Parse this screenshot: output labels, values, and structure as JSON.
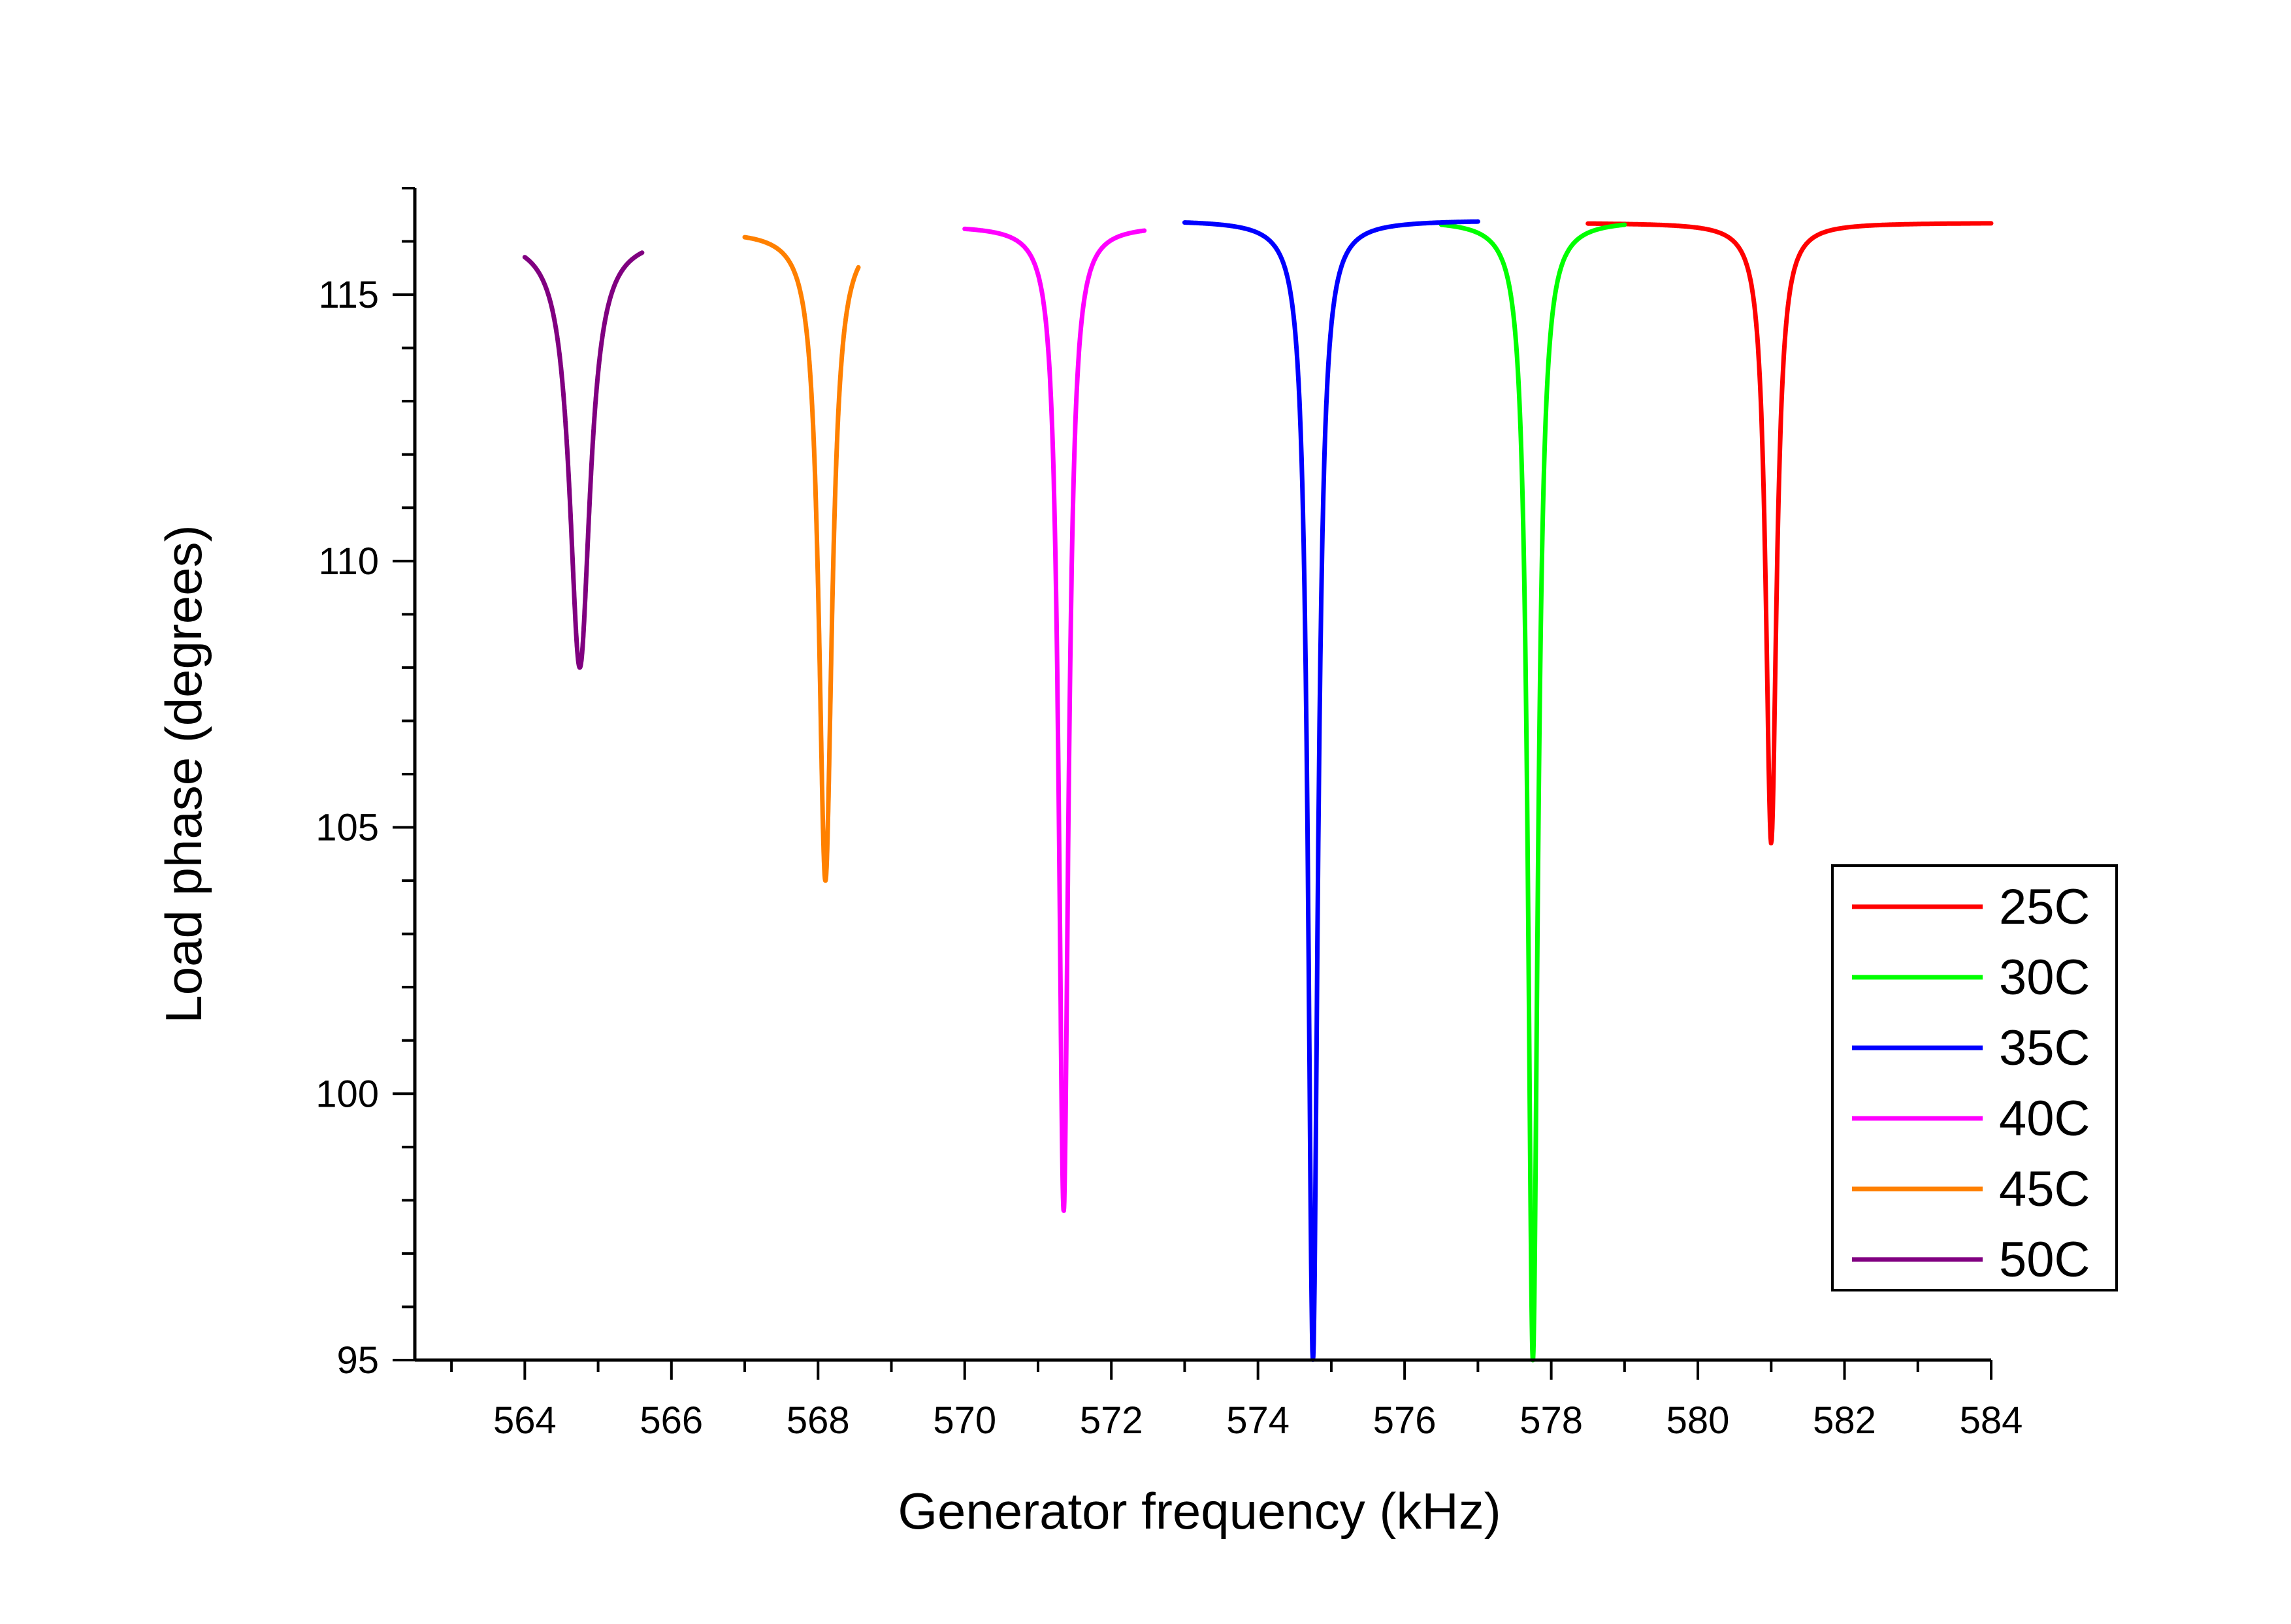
{
  "chart_data": {
    "type": "line",
    "title": "",
    "xlabel": "Generator frequency (kHz)",
    "ylabel": "Load phase (degrees)",
    "xlim": [
      562.5,
      584
    ],
    "ylim": [
      95,
      117
    ],
    "xticks": [
      564,
      566,
      568,
      570,
      572,
      574,
      576,
      578,
      580,
      582,
      584
    ],
    "yticks": [
      95,
      100,
      105,
      110,
      115
    ],
    "grid": false,
    "legend_position": "bottom-right",
    "series": [
      {
        "name": "25C",
        "color": "#ff0000",
        "x_range": [
          578.5,
          584
        ],
        "center": 581.0,
        "baseline": 116.35,
        "min": 104.7,
        "width": 0.09
      },
      {
        "name": "30C",
        "color": "#00ff00",
        "x_range": [
          576.5,
          579
        ],
        "center": 577.75,
        "baseline": 116.4,
        "min": 95.0,
        "width": 0.08
      },
      {
        "name": "35C",
        "color": "#0000ff",
        "x_range": [
          573,
          577
        ],
        "center": 574.75,
        "baseline": 116.4,
        "min": 95.0,
        "width": 0.08
      },
      {
        "name": "40C",
        "color": "#ff00ff",
        "x_range": [
          570,
          572.45
        ],
        "center": 571.35,
        "baseline": 116.3,
        "min": 97.8,
        "width": 0.08
      },
      {
        "name": "45C",
        "color": "#ff8000",
        "x_range": [
          567,
          568.55
        ],
        "center": 568.1,
        "baseline": 116.2,
        "min": 104.0,
        "width": 0.11
      },
      {
        "name": "50C",
        "color": "#800080",
        "x_range": [
          564,
          565.6
        ],
        "center": 564.75,
        "baseline": 116.1,
        "min": 108.0,
        "width": 0.17
      }
    ]
  }
}
